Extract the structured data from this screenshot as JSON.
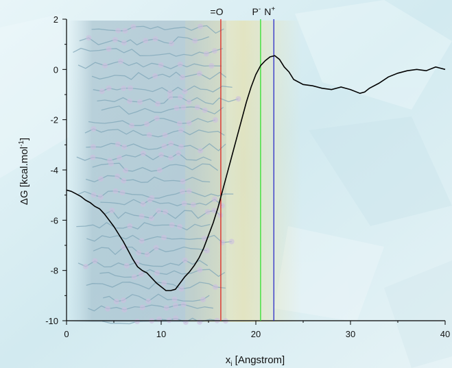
{
  "chart_data": {
    "type": "line",
    "xlabel_main": "x",
    "xlabel_sub": "i",
    "xlabel_rest": " [Angstrom]",
    "ylabel_main": "ΔG [kcal.mol",
    "ylabel_sup": "-1",
    "ylabel_end": "]",
    "xlim": [
      0,
      40
    ],
    "ylim": [
      -10,
      2
    ],
    "xticks": [
      0,
      10,
      20,
      30,
      40
    ],
    "xtick_labels": [
      "0",
      "10",
      "20",
      "30",
      "40"
    ],
    "yticks": [
      2,
      0,
      -2,
      -4,
      -6,
      -8,
      -10
    ],
    "ytick_labels": [
      "2",
      "0",
      "-2",
      "-4",
      "-6",
      "-8",
      "-10"
    ],
    "grid": false,
    "markers": [
      {
        "label_main": "=O",
        "label_sup": "",
        "x": 16.3,
        "color": "#e0231a"
      },
      {
        "label_main": "P",
        "label_sup": "-",
        "x": 20.5,
        "color": "#2ee02e"
      },
      {
        "label_main": "N",
        "label_sup": "+",
        "x": 21.9,
        "color": "#2a2ac8"
      }
    ],
    "series": [
      {
        "color": "#000000",
        "x": [
          0,
          0.5,
          1,
          1.5,
          2,
          2.5,
          3,
          3.5,
          4,
          4.5,
          5,
          5.5,
          6,
          6.5,
          7,
          7.5,
          8,
          8.5,
          9,
          9.5,
          10,
          10.5,
          11,
          11.5,
          12,
          12.5,
          13,
          13.5,
          14,
          14.5,
          15,
          15.5,
          16,
          16.5,
          17,
          17.5,
          18,
          18.5,
          19,
          19.5,
          20,
          20.5,
          21,
          21.5,
          22,
          22.5,
          23,
          23.5,
          24,
          25,
          26,
          27,
          28,
          29,
          30,
          31,
          31.5,
          32,
          33,
          34,
          35,
          36,
          37,
          38,
          39,
          39.5,
          40
        ],
        "y": [
          -4.8,
          -4.85,
          -4.95,
          -5.05,
          -5.2,
          -5.3,
          -5.45,
          -5.55,
          -5.75,
          -6.0,
          -6.25,
          -6.55,
          -6.85,
          -7.2,
          -7.55,
          -7.85,
          -8.0,
          -8.1,
          -8.3,
          -8.5,
          -8.65,
          -8.8,
          -8.8,
          -8.75,
          -8.5,
          -8.25,
          -8.05,
          -7.8,
          -7.5,
          -7.1,
          -6.6,
          -6.1,
          -5.5,
          -4.8,
          -4.1,
          -3.4,
          -2.7,
          -2.0,
          -1.3,
          -0.7,
          -0.2,
          0.15,
          0.35,
          0.5,
          0.55,
          0.4,
          0.1,
          -0.1,
          -0.4,
          -0.6,
          -0.65,
          -0.75,
          -0.8,
          -0.7,
          -0.8,
          -0.95,
          -0.9,
          -0.75,
          -0.55,
          -0.3,
          -0.15,
          -0.05,
          0.0,
          -0.05,
          0.1,
          0.05,
          0.0
        ]
      }
    ]
  }
}
